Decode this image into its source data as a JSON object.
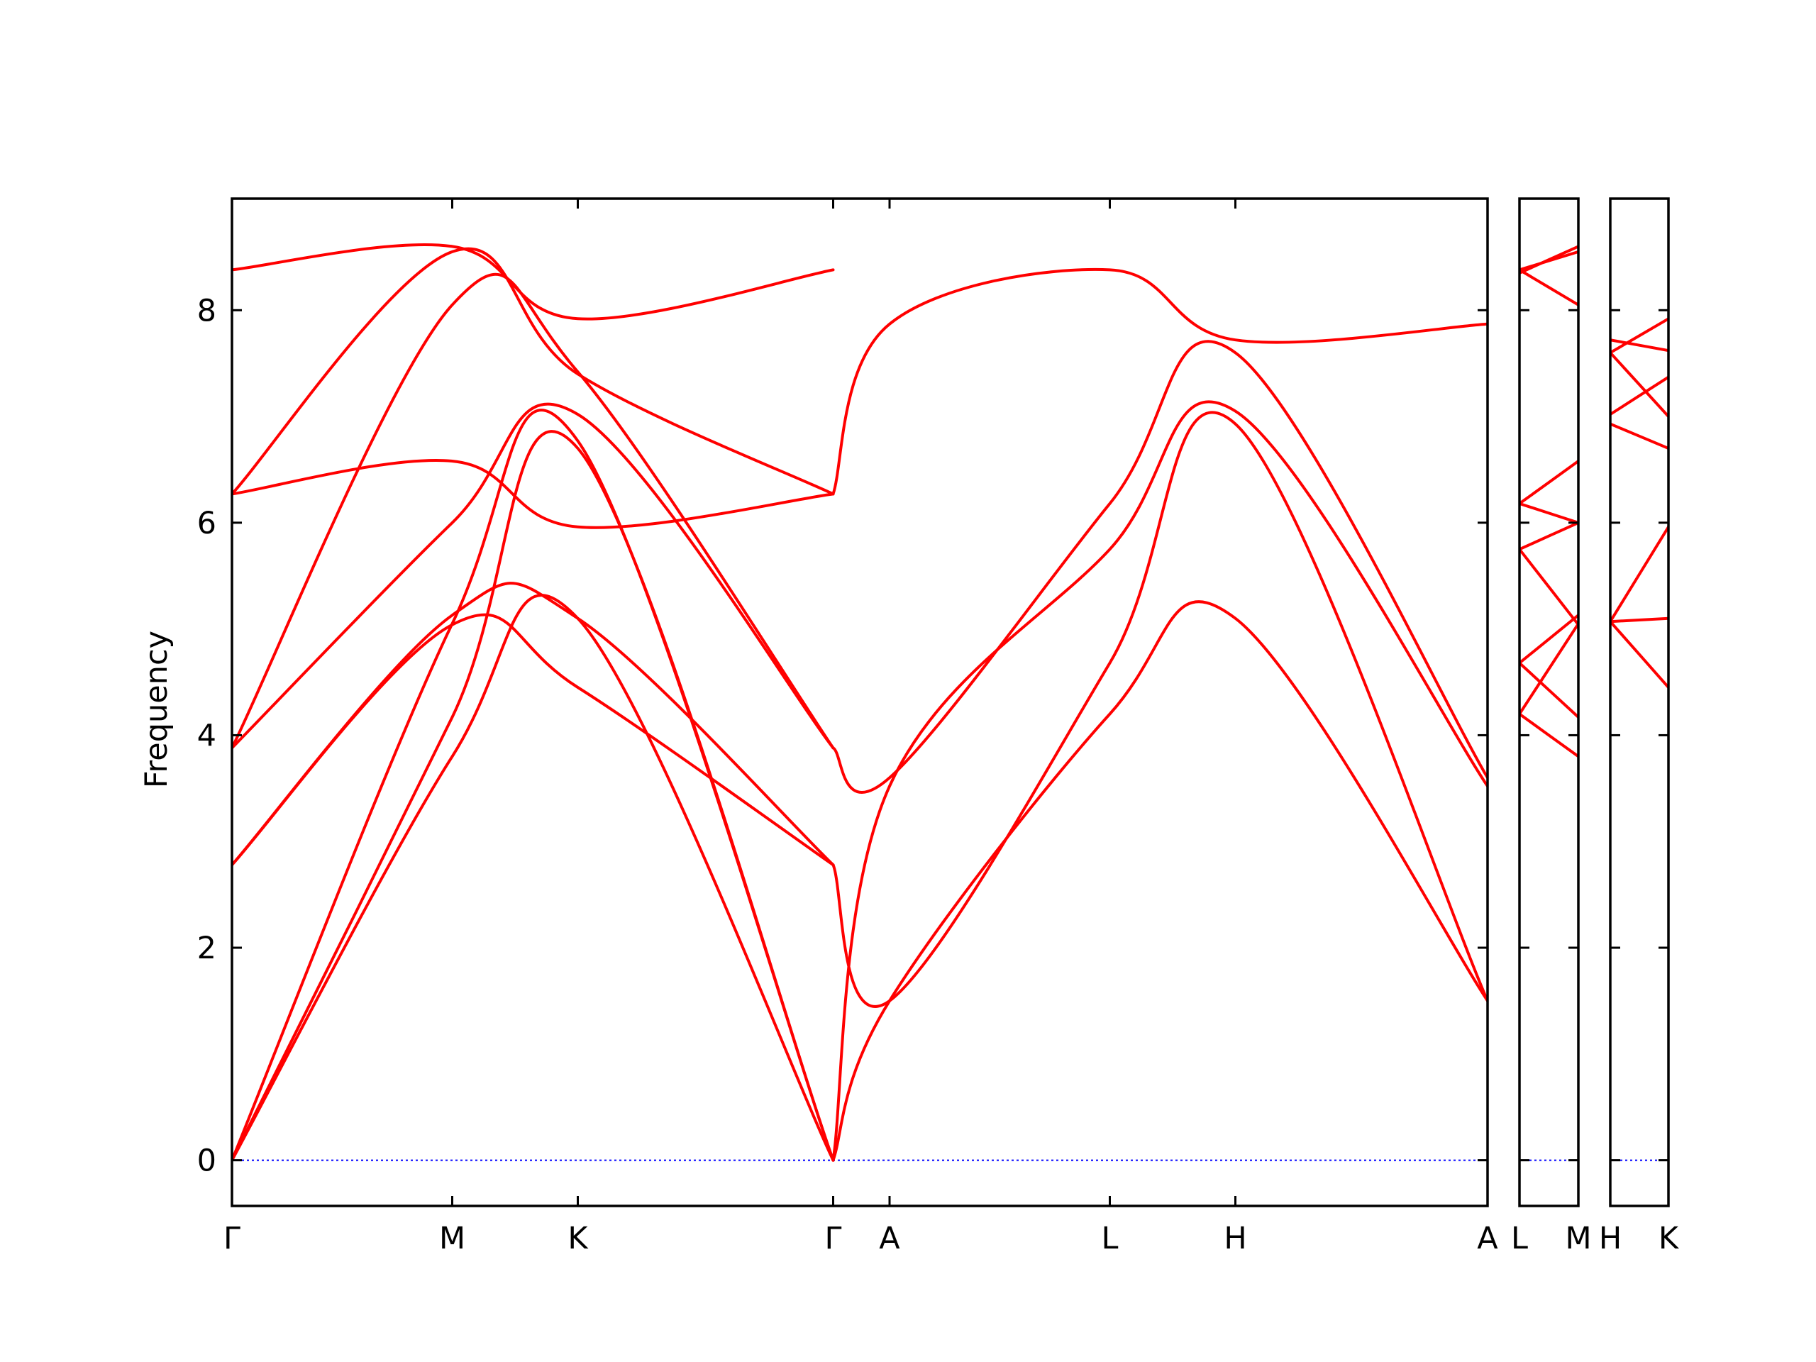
{
  "chart_data": {
    "type": "line",
    "ylabel": "Frequency",
    "xlabel": "",
    "ylim": [
      -0.43,
      9.05
    ],
    "yticks": [
      0,
      2,
      4,
      6,
      8
    ],
    "grid": false,
    "colors": {
      "bands": "#ff0000",
      "zero_line": "#0000ff"
    },
    "panels": [
      {
        "xlim": [
          0,
          11.8
        ],
        "tick_positions": [
          0,
          2.07,
          3.25,
          5.65,
          6.18,
          8.25,
          9.43,
          11.8
        ],
        "tick_labels": [
          "Γ",
          "M",
          "K",
          "Γ",
          "A",
          "L",
          "H",
          "A"
        ],
        "series": [
          {
            "x": [
              0,
              2.07,
              3.25,
              5.65
            ],
            "y": [
              0,
              3.8,
              5.1,
              0
            ]
          },
          {
            "x": [
              0,
              2.07,
              3.25,
              5.65
            ],
            "y": [
              0,
              4.17,
              6.7,
              0
            ]
          },
          {
            "x": [
              0,
              2.07,
              3.25,
              5.65
            ],
            "y": [
              0,
              5.05,
              6.77,
              0
            ]
          },
          {
            "x": [
              0,
              2.07,
              3.25,
              5.65
            ],
            "y": [
              2.78,
              5.04,
              4.45,
              2.78
            ]
          },
          {
            "x": [
              0,
              2.07,
              3.25,
              5.65
            ],
            "y": [
              2.78,
              5.13,
              5.1,
              2.78
            ]
          },
          {
            "x": [
              0,
              2.07,
              3.25,
              5.65
            ],
            "y": [
              3.88,
              6.0,
              7.02,
              3.88
            ]
          },
          {
            "x": [
              0,
              2.07,
              3.25,
              5.65
            ],
            "y": [
              3.88,
              8.05,
              7.42,
              3.88
            ]
          },
          {
            "x": [
              0,
              2.07,
              3.25,
              5.65
            ],
            "y": [
              6.27,
              6.58,
              5.96,
              6.27
            ]
          },
          {
            "x": [
              0,
              2.07,
              3.25,
              5.65
            ],
            "y": [
              6.27,
              8.55,
              7.4,
              6.27
            ]
          },
          {
            "x": [
              0,
              2.07,
              3.25,
              5.65
            ],
            "y": [
              8.38,
              8.6,
              7.92,
              8.38
            ]
          },
          {
            "x": [
              5.65,
              6.18,
              8.25,
              9.43,
              11.8
            ],
            "y": [
              0,
              1.5,
              4.2,
              5.1,
              1.5
            ]
          },
          {
            "x": [
              5.65,
              6.18,
              8.25,
              9.43,
              11.8
            ],
            "y": [
              2.78,
              1.5,
              4.68,
              6.93,
              1.5
            ]
          },
          {
            "x": [
              5.65,
              6.18,
              8.25,
              9.43,
              11.8
            ],
            "y": [
              0,
              3.52,
              5.75,
              7.05,
              3.52
            ]
          },
          {
            "x": [
              5.65,
              6.18,
              8.25,
              9.43,
              11.8
            ],
            "y": [
              3.88,
              3.6,
              6.18,
              7.6,
              3.6
            ]
          },
          {
            "x": [
              5.65,
              6.18,
              8.25,
              9.43,
              11.8
            ],
            "y": [
              6.27,
              7.87,
              8.38,
              7.72,
              7.87
            ]
          }
        ]
      },
      {
        "xlim": [
          0,
          0.55
        ],
        "tick_positions": [
          0,
          0.55
        ],
        "tick_labels": [
          "L",
          "M"
        ],
        "series": [
          {
            "x": [
              0,
              0.55
            ],
            "y": [
              4.2,
              3.8
            ]
          },
          {
            "x": [
              0,
              0.55
            ],
            "y": [
              4.68,
              4.17
            ]
          },
          {
            "x": [
              0,
              0.55
            ],
            "y": [
              4.2,
              5.05
            ]
          },
          {
            "x": [
              0,
              0.55
            ],
            "y": [
              4.68,
              5.13
            ]
          },
          {
            "x": [
              0,
              0.55
            ],
            "y": [
              5.75,
              5.04
            ]
          },
          {
            "x": [
              0,
              0.55
            ],
            "y": [
              5.75,
              6.0
            ]
          },
          {
            "x": [
              0,
              0.55
            ],
            "y": [
              6.18,
              6.0
            ]
          },
          {
            "x": [
              0,
              0.55
            ],
            "y": [
              6.18,
              6.58
            ]
          },
          {
            "x": [
              0,
              0.55
            ],
            "y": [
              8.38,
              8.05
            ]
          },
          {
            "x": [
              0,
              0.55
            ],
            "y": [
              8.38,
              8.55
            ]
          },
          {
            "x": [
              0,
              0.55
            ],
            "y": [
              8.35,
              8.6
            ]
          }
        ]
      },
      {
        "xlim": [
          0,
          0.55
        ],
        "tick_positions": [
          0,
          0.55
        ],
        "tick_labels": [
          "H",
          "K"
        ],
        "series": [
          {
            "x": [
              0,
              0.55
            ],
            "y": [
              5.07,
              5.1
            ]
          },
          {
            "x": [
              0,
              0.55
            ],
            "y": [
              5.07,
              4.45
            ]
          },
          {
            "x": [
              0,
              0.55
            ],
            "y": [
              5.07,
              5.96
            ]
          },
          {
            "x": [
              0,
              0.55
            ],
            "y": [
              6.93,
              6.7
            ]
          },
          {
            "x": [
              0,
              0.55
            ],
            "y": [
              7.02,
              7.37
            ]
          },
          {
            "x": [
              0,
              0.55
            ],
            "y": [
              7.6,
              7.0
            ]
          },
          {
            "x": [
              0,
              0.55
            ],
            "y": [
              7.72,
              7.62
            ]
          },
          {
            "x": [
              0,
              0.55
            ],
            "y": [
              7.6,
              7.92
            ]
          }
        ]
      }
    ]
  }
}
